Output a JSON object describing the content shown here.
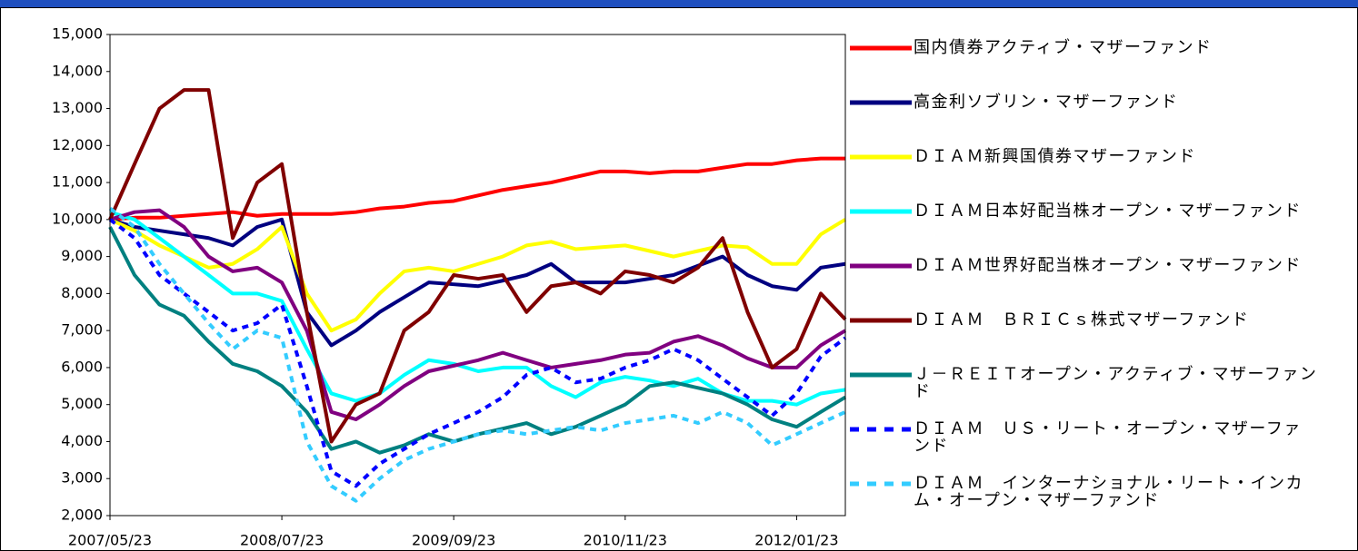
{
  "chart_data": {
    "type": "line",
    "x": [
      "2007/05/23",
      "2007/07/23",
      "2007/09/23",
      "2007/11/23",
      "2008/01/23",
      "2008/03/23",
      "2008/05/23",
      "2008/07/23",
      "2008/09/23",
      "2008/11/23",
      "2009/01/23",
      "2009/03/23",
      "2009/05/23",
      "2009/07/23",
      "2009/09/23",
      "2009/11/23",
      "2010/01/23",
      "2010/03/23",
      "2010/05/23",
      "2010/07/23",
      "2010/09/23",
      "2010/11/23",
      "2011/01/23",
      "2011/03/23",
      "2011/05/23",
      "2011/07/23",
      "2011/09/23",
      "2011/11/23",
      "2012/01/23",
      "2012/03/23",
      "2012/05/23"
    ],
    "xlim": [
      "2007/05/23",
      "2012/05/23"
    ],
    "xticks": [
      "2007/05/23",
      "2008/07/23",
      "2009/09/23",
      "2010/11/23",
      "2012/01/23"
    ],
    "ylim": [
      2000,
      15000
    ],
    "yticks": [
      {
        "value": 2000,
        "label": "2,000"
      },
      {
        "value": 3000,
        "label": "3,000"
      },
      {
        "value": 4000,
        "label": "4,000"
      },
      {
        "value": 5000,
        "label": "5,000"
      },
      {
        "value": 6000,
        "label": "6,000"
      },
      {
        "value": 7000,
        "label": "7,000"
      },
      {
        "value": 8000,
        "label": "8,000"
      },
      {
        "value": 9000,
        "label": "9,000"
      },
      {
        "value": 10000,
        "label": "10,000"
      },
      {
        "value": 11000,
        "label": "11,000"
      },
      {
        "value": 12000,
        "label": "12,000"
      },
      {
        "value": 13000,
        "label": "13,000"
      },
      {
        "value": 14000,
        "label": "14,000"
      },
      {
        "value": 15000,
        "label": "15,000"
      }
    ],
    "series": [
      {
        "name": "国内債券アクティブ・マザーファンド",
        "color": "#ff0000",
        "dash": false,
        "values": [
          10000,
          10050,
          10050,
          10100,
          10150,
          10200,
          10100,
          10150,
          10150,
          10150,
          10200,
          10300,
          10350,
          10450,
          10500,
          10650,
          10800,
          10900,
          11000,
          11150,
          11300,
          11300,
          11250,
          11300,
          11300,
          11400,
          11500,
          11500,
          11600,
          11650,
          11650
        ]
      },
      {
        "name": "高金利ソブリン・マザーファンド",
        "color": "#000080",
        "dash": false,
        "values": [
          10000,
          9800,
          9700,
          9600,
          9500,
          9300,
          9800,
          10000,
          7500,
          6600,
          7000,
          7500,
          7900,
          8300,
          8250,
          8200,
          8350,
          8500,
          8800,
          8300,
          8300,
          8300,
          8400,
          8500,
          8750,
          9000,
          8500,
          8200,
          8100,
          8700,
          8800
        ]
      },
      {
        "name": "ＤＩＡＭ新興国債券マザーファンド",
        "color": "#ffff00",
        "dash": false,
        "values": [
          10000,
          9700,
          9300,
          9000,
          8700,
          8800,
          9200,
          9800,
          8000,
          7000,
          7300,
          8000,
          8600,
          8700,
          8600,
          8800,
          9000,
          9300,
          9400,
          9200,
          9250,
          9300,
          9150,
          9000,
          9150,
          9300,
          9250,
          8800,
          8800,
          9600,
          10000
        ]
      },
      {
        "name": "ＤＩＡＭ日本好配当株オープン・マザーファンド",
        "color": "#00ffff",
        "dash": false,
        "values": [
          10200,
          10000,
          9500,
          9000,
          8500,
          8000,
          8000,
          7800,
          6500,
          5300,
          5100,
          5300,
          5800,
          6200,
          6100,
          5900,
          6000,
          6000,
          5500,
          5200,
          5600,
          5750,
          5650,
          5500,
          5700,
          5300,
          5100,
          5100,
          5000,
          5300,
          5400
        ]
      },
      {
        "name": "ＤＩＡＭ世界好配当株オープン・マザーファンド",
        "color": "#800080",
        "dash": false,
        "values": [
          10000,
          10200,
          10250,
          9800,
          9000,
          8600,
          8700,
          8300,
          7000,
          4800,
          4600,
          5000,
          5500,
          5900,
          6050,
          6200,
          6400,
          6200,
          6000,
          6100,
          6200,
          6350,
          6400,
          6700,
          6850,
          6600,
          6250,
          6000,
          6000,
          6600,
          7000
        ]
      },
      {
        "name": "ＤＩＡＭ　ＢＲＩＣｓ株式マザーファンド",
        "color": "#800000",
        "dash": false,
        "values": [
          10000,
          11500,
          13000,
          13500,
          13500,
          9500,
          11000,
          11500,
          7500,
          4000,
          5000,
          5300,
          7000,
          7500,
          8500,
          8400,
          8500,
          7500,
          8200,
          8300,
          8000,
          8600,
          8500,
          8300,
          8700,
          9500,
          7500,
          6000,
          6500,
          8000,
          7300
        ]
      },
      {
        "name": "Ｊ－ＲＥＩＴオープン・アクティブ・マザーファンド",
        "color": "#008080",
        "dash": false,
        "values": [
          9800,
          8500,
          7700,
          7400,
          6700,
          6100,
          5900,
          5500,
          4800,
          3800,
          4000,
          3700,
          3900,
          4200,
          4000,
          4200,
          4350,
          4500,
          4200,
          4400,
          4700,
          5000,
          5500,
          5600,
          5450,
          5300,
          5000,
          4600,
          4400,
          4800,
          5200
        ]
      },
      {
        "name": "ＤＩＡＭ　ＵＳ・リート・オープン・マザーファンド",
        "color": "#0000ff",
        "dash": true,
        "values": [
          10000,
          9500,
          8500,
          8000,
          7500,
          7000,
          7200,
          7700,
          5500,
          3200,
          2800,
          3400,
          3800,
          4200,
          4500,
          4800,
          5200,
          5800,
          6000,
          5600,
          5700,
          6000,
          6200,
          6500,
          6200,
          5700,
          5200,
          4700,
          5300,
          6300,
          6800
        ]
      },
      {
        "name": "ＤＩＡＭ　インターナショナル・リート・インカム・オープン・マザーファンド",
        "color": "#33ccff",
        "dash": true,
        "values": [
          10300,
          9800,
          8800,
          8000,
          7200,
          6500,
          7000,
          6800,
          4000,
          2800,
          2400,
          3000,
          3500,
          3800,
          4000,
          4200,
          4300,
          4200,
          4300,
          4400,
          4300,
          4500,
          4600,
          4700,
          4500,
          4800,
          4500,
          3900,
          4200,
          4500,
          4800
        ]
      }
    ]
  }
}
